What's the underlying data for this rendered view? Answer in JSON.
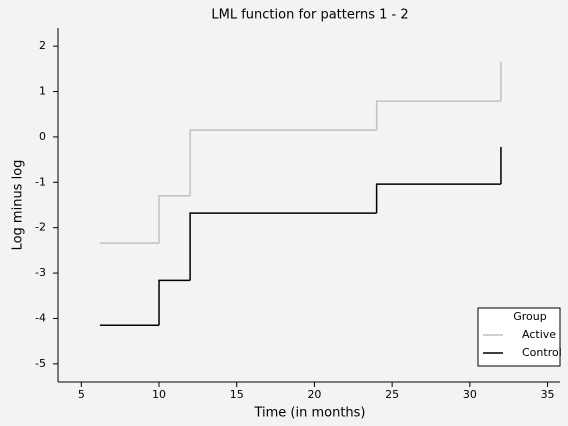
{
  "chart_data": {
    "type": "step",
    "title": "LML function for patterns 1 - 2",
    "x_label": "Time (in months)",
    "y_label": "Log minus log",
    "x": [
      6.2,
      10,
      12,
      24,
      32
    ],
    "series": [
      {
        "name": "Active",
        "color": "#c0c0c0",
        "values": [
          -2.34,
          -1.3,
          0.15,
          0.79,
          1.66
        ]
      },
      {
        "name": "Control",
        "color": "#000000",
        "values": [
          -4.15,
          -3.16,
          -1.68,
          -1.04,
          -0.22
        ]
      }
    ],
    "legend_title": "Group",
    "legend": "bottom-right",
    "xlim": [
      3.5,
      35.8
    ],
    "xticks": [
      5,
      10,
      15,
      20,
      25,
      30,
      35
    ],
    "ylim": [
      -5.4,
      2.4
    ],
    "yticks": [
      -5,
      -4,
      -3,
      -2,
      -1,
      0,
      1,
      2
    ]
  }
}
